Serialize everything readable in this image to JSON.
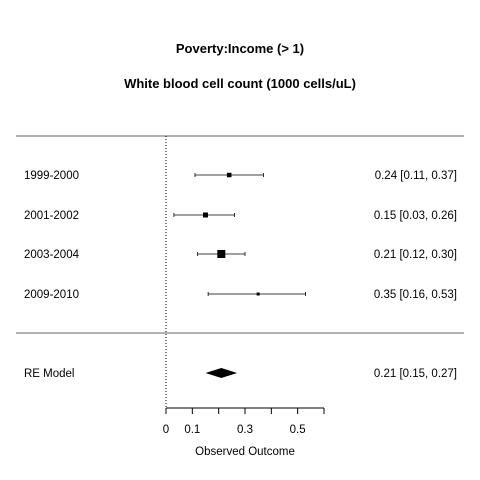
{
  "chart_data": {
    "type": "forest",
    "title": "Poverty:Income (> 1)",
    "subtitle": "White blood cell count (1000 cells/uL)",
    "xlabel": "Observed Outcome",
    "xticks": [
      {
        "value": 0,
        "label": "0"
      },
      {
        "value": 0.1,
        "label": "0.1"
      },
      {
        "value": 0.2,
        "label": ""
      },
      {
        "value": 0.3,
        "label": "0.3"
      },
      {
        "value": 0.4,
        "label": ""
      },
      {
        "value": 0.5,
        "label": "0.5"
      },
      {
        "value": 0.6,
        "label": ""
      }
    ],
    "reference_line": 0,
    "studies": [
      {
        "label": "1999-2000",
        "estimate": 0.24,
        "lower": 0.11,
        "upper": 0.37,
        "weight": 0.25,
        "text": "0.24 [0.11, 0.37]"
      },
      {
        "label": "2001-2002",
        "estimate": 0.15,
        "lower": 0.03,
        "upper": 0.26,
        "weight": 0.3,
        "text": "0.15 [0.03, 0.26]"
      },
      {
        "label": "2003-2004",
        "estimate": 0.21,
        "lower": 0.12,
        "upper": 0.3,
        "weight": 0.6,
        "text": "0.21 [0.12, 0.30]"
      },
      {
        "label": "2009-2010",
        "estimate": 0.35,
        "lower": 0.16,
        "upper": 0.53,
        "weight": 0.1,
        "text": "0.35 [0.16, 0.53]"
      }
    ],
    "summary": {
      "label": "RE Model",
      "estimate": 0.21,
      "lower": 0.15,
      "upper": 0.27,
      "text": "0.21 [0.15, 0.27]"
    }
  }
}
